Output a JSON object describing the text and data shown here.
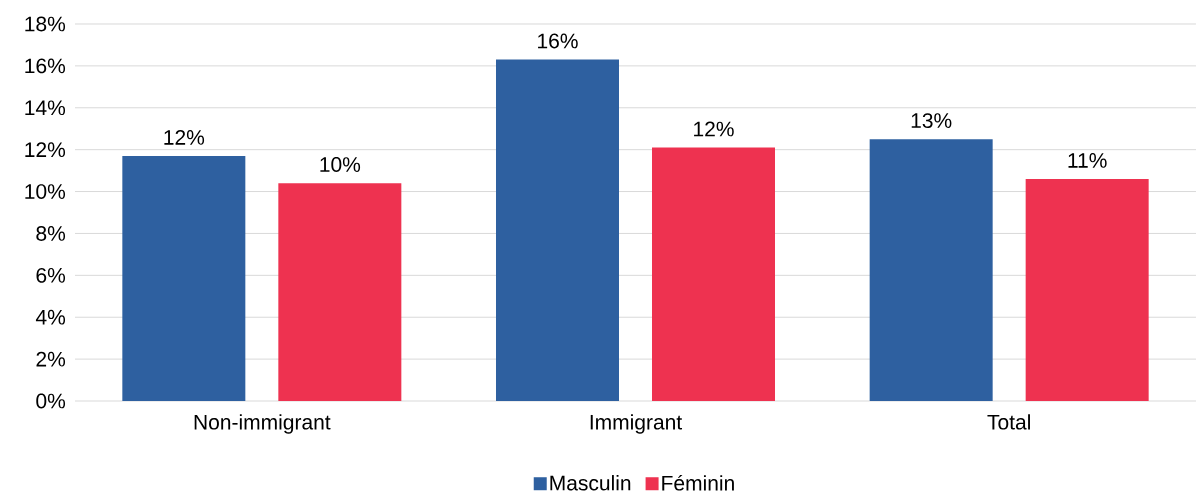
{
  "chart_data": {
    "type": "bar",
    "categories": [
      "Non-immigrant",
      "Immigrant",
      "Total"
    ],
    "series": [
      {
        "name": "Masculin",
        "color": "#2e60a0",
        "values": [
          11.7,
          16.3,
          12.5
        ],
        "value_labels": [
          "12%",
          "16%",
          "13%"
        ]
      },
      {
        "name": "Féminin",
        "color": "#ee3250",
        "values": [
          10.4,
          12.1,
          10.6
        ],
        "value_labels": [
          "10%",
          "12%",
          "11%"
        ]
      }
    ],
    "ylim": [
      0,
      18
    ],
    "yticks": [
      {
        "value": 0,
        "label": "0%"
      },
      {
        "value": 2,
        "label": "2%"
      },
      {
        "value": 4,
        "label": "4%"
      },
      {
        "value": 6,
        "label": "6%"
      },
      {
        "value": 8,
        "label": "8%"
      },
      {
        "value": 10,
        "label": "10%"
      },
      {
        "value": 12,
        "label": "12%"
      },
      {
        "value": 14,
        "label": "14%"
      },
      {
        "value": 16,
        "label": "16%"
      },
      {
        "value": 18,
        "label": "18%"
      }
    ],
    "grid": "y",
    "legend": "bottom"
  }
}
